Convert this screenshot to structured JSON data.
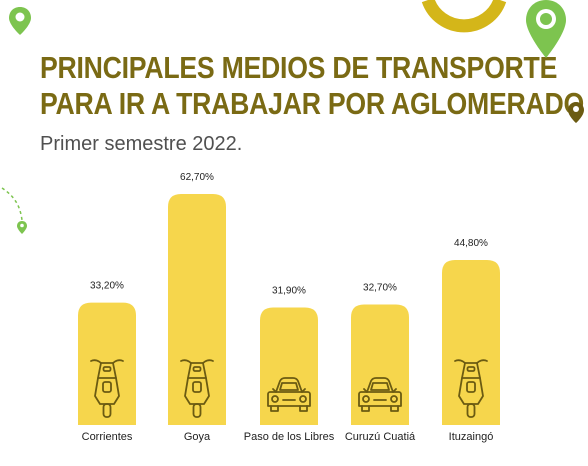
{
  "header": {
    "title_line1": "PRINCIPALES MEDIOS DE TRANSPORTE",
    "title_line2": "PARA IR A TRABAJAR POR AGLOMERADO",
    "subtitle": "Primer semestre 2022."
  },
  "colors": {
    "bar": "#f6d64c",
    "title": "#7a6a14",
    "icon_stroke": "#6b5b12",
    "accent_green": "#7dc44f"
  },
  "chart_data": {
    "type": "bar",
    "categories": [
      "Corrientes",
      "Goya",
      "Paso de los Libres",
      "Curuzú Cuatiá",
      "Ituzaingó"
    ],
    "values": [
      33.2,
      62.7,
      31.9,
      32.7,
      44.8
    ],
    "value_labels": [
      "33,20%",
      "62,70%",
      "31,90%",
      "32,70%",
      "44,80%"
    ],
    "icons": [
      "motorcycle-icon",
      "motorcycle-icon",
      "car-icon",
      "car-icon",
      "motorcycle-icon"
    ],
    "ylim": [
      0,
      62.7
    ]
  }
}
